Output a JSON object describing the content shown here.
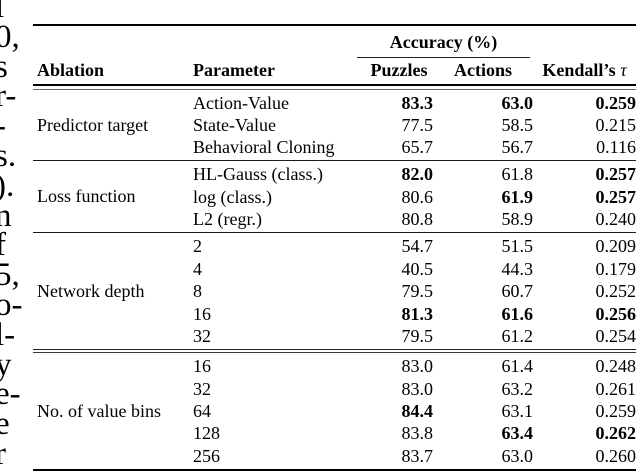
{
  "margin": {
    "fragments": [
      "l",
      "0,",
      "s",
      "r-",
      "-",
      "s.",
      ").",
      "n",
      "f",
      "5,",
      "o-",
      "l-",
      "y",
      "e-",
      "e",
      "r"
    ]
  },
  "table": {
    "header": {
      "accuracy_group": "Accuracy (%)",
      "col_ablation": "Ablation",
      "col_parameter": "Parameter",
      "col_puzzles": "Puzzles",
      "col_actions": "Actions",
      "col_kendall": "Kendall’s",
      "col_kendall_tau": "τ"
    },
    "sections": [
      {
        "ablation": "Predictor target",
        "rows": [
          {
            "param": "Action-Value",
            "puzzles": "83.3",
            "actions": "63.0",
            "kendall": "0.259",
            "bold": [
              "puzzles",
              "actions",
              "kendall"
            ]
          },
          {
            "param": "State-Value",
            "puzzles": "77.5",
            "actions": "58.5",
            "kendall": "0.215",
            "bold": []
          },
          {
            "param": "Behavioral Cloning",
            "puzzles": "65.7",
            "actions": "56.7",
            "kendall": "0.116",
            "bold": []
          }
        ]
      },
      {
        "ablation": "Loss function",
        "rows": [
          {
            "param": "HL-Gauss (class.)",
            "puzzles": "82.0",
            "actions": "61.8",
            "kendall": "0.257",
            "bold": [
              "puzzles",
              "kendall"
            ]
          },
          {
            "param": "log (class.)",
            "puzzles": "80.6",
            "actions": "61.9",
            "kendall": "0.257",
            "bold": [
              "actions",
              "kendall"
            ]
          },
          {
            "param": "L2 (regr.)",
            "puzzles": "80.8",
            "actions": "58.9",
            "kendall": "0.240",
            "bold": []
          }
        ]
      },
      {
        "ablation": "Network depth",
        "rows": [
          {
            "param": "2",
            "puzzles": "54.7",
            "actions": "51.5",
            "kendall": "0.209",
            "bold": []
          },
          {
            "param": "4",
            "puzzles": "40.5",
            "actions": "44.3",
            "kendall": "0.179",
            "bold": []
          },
          {
            "param": "8",
            "puzzles": "79.5",
            "actions": "60.7",
            "kendall": "0.252",
            "bold": []
          },
          {
            "param": "16",
            "puzzles": "81.3",
            "actions": "61.6",
            "kendall": "0.256",
            "bold": [
              "puzzles",
              "actions",
              "kendall"
            ]
          },
          {
            "param": "32",
            "puzzles": "79.5",
            "actions": "61.2",
            "kendall": "0.254",
            "bold": []
          }
        ]
      },
      {
        "ablation": "No. of value bins",
        "rows": [
          {
            "param": "16",
            "puzzles": "83.0",
            "actions": "61.4",
            "kendall": "0.248",
            "bold": []
          },
          {
            "param": "32",
            "puzzles": "83.0",
            "actions": "63.2",
            "kendall": "0.261",
            "bold": []
          },
          {
            "param": "64",
            "puzzles": "84.4",
            "actions": "63.1",
            "kendall": "0.259",
            "bold": [
              "puzzles"
            ]
          },
          {
            "param": "128",
            "puzzles": "83.8",
            "actions": "63.4",
            "kendall": "0.262",
            "bold": [
              "actions",
              "kendall"
            ]
          },
          {
            "param": "256",
            "puzzles": "83.7",
            "actions": "63.0",
            "kendall": "0.260",
            "bold": []
          }
        ]
      }
    ]
  },
  "colors": {
    "text": "#000000",
    "rule": "#000000",
    "background": "#ffffff"
  }
}
